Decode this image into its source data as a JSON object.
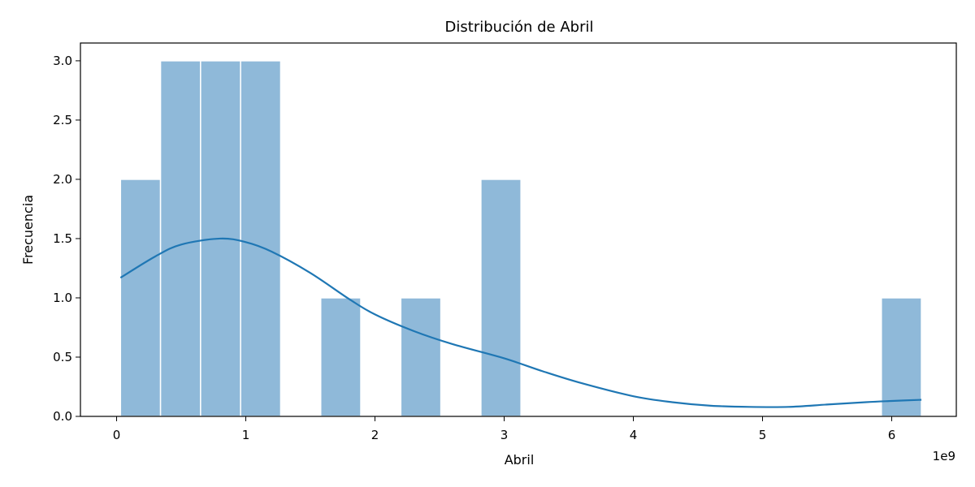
{
  "chart_data": {
    "type": "histogram",
    "title": "Distribución de Abril",
    "xlabel": "Abril",
    "ylabel": "Frecuencia",
    "x_offset_label": "1e9",
    "xlim": [
      -0.28,
      6.5
    ],
    "ylim": [
      0,
      3.15
    ],
    "x_ticks": [
      0,
      1,
      2,
      3,
      4,
      5,
      6
    ],
    "x_tick_labels": [
      "0",
      "1",
      "2",
      "3",
      "4",
      "5",
      "6"
    ],
    "y_ticks": [
      0.0,
      0.5,
      1.0,
      1.5,
      2.0,
      2.5,
      3.0
    ],
    "y_tick_labels": [
      "0.0",
      "0.5",
      "1.0",
      "1.5",
      "2.0",
      "2.5",
      "3.0"
    ],
    "bins": [
      {
        "start": 0.03,
        "end": 0.34,
        "count": 2
      },
      {
        "start": 0.34,
        "end": 0.65,
        "count": 3
      },
      {
        "start": 0.65,
        "end": 0.96,
        "count": 3
      },
      {
        "start": 0.96,
        "end": 1.27,
        "count": 3
      },
      {
        "start": 1.27,
        "end": 1.58,
        "count": 0
      },
      {
        "start": 1.58,
        "end": 1.89,
        "count": 1
      },
      {
        "start": 1.89,
        "end": 2.2,
        "count": 0
      },
      {
        "start": 2.2,
        "end": 2.51,
        "count": 1
      },
      {
        "start": 2.51,
        "end": 2.82,
        "count": 0
      },
      {
        "start": 2.82,
        "end": 3.13,
        "count": 2
      },
      {
        "start": 3.13,
        "end": 3.44,
        "count": 0
      },
      {
        "start": 3.44,
        "end": 3.75,
        "count": 0
      },
      {
        "start": 3.75,
        "end": 4.06,
        "count": 0
      },
      {
        "start": 4.06,
        "end": 4.37,
        "count": 0
      },
      {
        "start": 4.37,
        "end": 4.68,
        "count": 0
      },
      {
        "start": 4.68,
        "end": 4.99,
        "count": 0
      },
      {
        "start": 4.99,
        "end": 5.3,
        "count": 0
      },
      {
        "start": 5.3,
        "end": 5.61,
        "count": 0
      },
      {
        "start": 5.61,
        "end": 5.92,
        "count": 0
      },
      {
        "start": 5.92,
        "end": 6.23,
        "count": 1
      }
    ],
    "kde": {
      "x": [
        0.03,
        0.3,
        0.5,
        0.8,
        1.0,
        1.2,
        1.5,
        1.8,
        2.0,
        2.3,
        2.6,
        3.0,
        3.3,
        3.6,
        4.0,
        4.3,
        4.6,
        4.9,
        5.2,
        5.5,
        5.8,
        6.0,
        6.23
      ],
      "y": [
        1.17,
        1.35,
        1.45,
        1.5,
        1.47,
        1.39,
        1.21,
        0.99,
        0.86,
        0.72,
        0.61,
        0.49,
        0.38,
        0.28,
        0.17,
        0.12,
        0.09,
        0.08,
        0.08,
        0.1,
        0.12,
        0.13,
        0.14
      ]
    },
    "colors": {
      "bar": "#8fb9d9",
      "bar_edge": "#ffffff",
      "kde": "#1f77b4"
    }
  }
}
